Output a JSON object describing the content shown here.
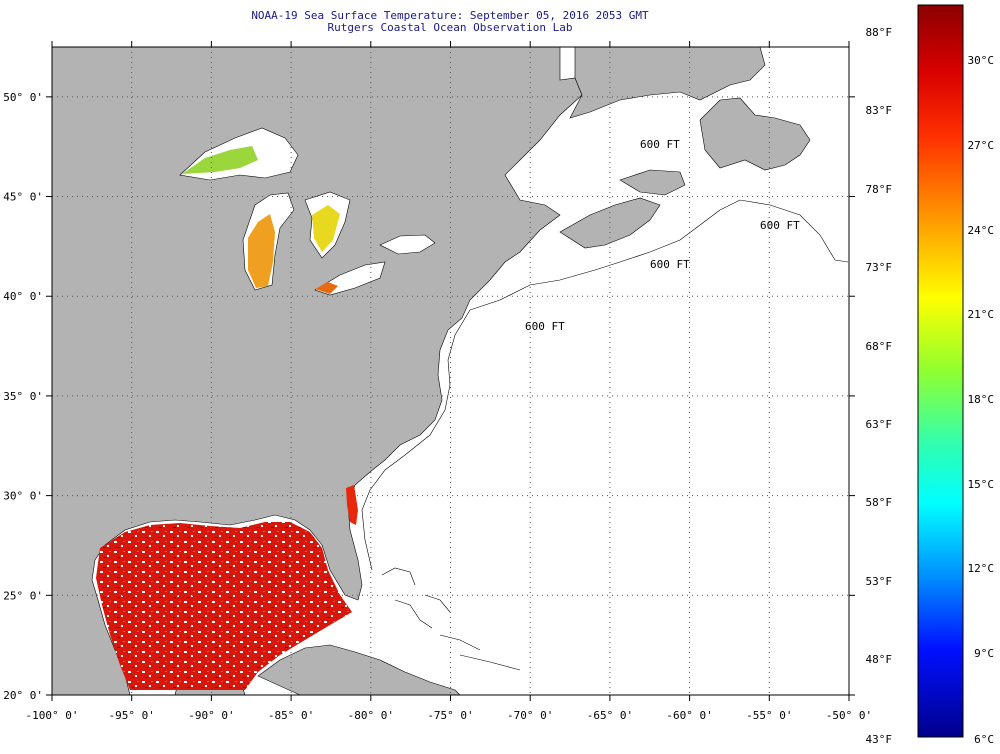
{
  "title": {
    "line1": "NOAA-19 Sea Surface Temperature:  September 05, 2016 2053 GMT",
    "line2": "Rutgers Coastal Ocean Observation Lab"
  },
  "map": {
    "lon_range": [
      -100,
      -50
    ],
    "lat_range": [
      20,
      52.5
    ],
    "lon_ticks": [
      {
        "v": -100,
        "label": "-100° 0'"
      },
      {
        "v": -95,
        "label": "-95° 0'"
      },
      {
        "v": -90,
        "label": "-90° 0'"
      },
      {
        "v": -85,
        "label": "-85° 0'"
      },
      {
        "v": -80,
        "label": "-80° 0'"
      },
      {
        "v": -75,
        "label": "-75° 0'"
      },
      {
        "v": -70,
        "label": "-70° 0'"
      },
      {
        "v": -65,
        "label": "-65° 0'"
      },
      {
        "v": -60,
        "label": "-60° 0'"
      },
      {
        "v": -55,
        "label": "-55° 0'"
      },
      {
        "v": -50,
        "label": "-50° 0'"
      }
    ],
    "lat_ticks": [
      {
        "v": 20,
        "label": "20° 0'"
      },
      {
        "v": 25,
        "label": "25° 0'"
      },
      {
        "v": 30,
        "label": "30° 0'"
      },
      {
        "v": 35,
        "label": "35° 0'"
      },
      {
        "v": 40,
        "label": "40° 0'"
      },
      {
        "v": 45,
        "label": "45° 0'"
      },
      {
        "v": 50,
        "label": "50° 0'"
      }
    ],
    "grid": "dotted",
    "contour_label": "600 FT",
    "colors": {
      "land": "#b3b3b3",
      "ocean_no_data": "#ffffff",
      "gulf": "#d41a0a"
    }
  },
  "colorbar": {
    "f_labels": [
      "88°F",
      "83°F",
      "78°F",
      "73°F",
      "68°F",
      "63°F",
      "58°F",
      "53°F",
      "48°F",
      "43°F"
    ],
    "c_labels": [
      "30°C",
      "27°C",
      "24°C",
      "21°C",
      "18°C",
      "15°C",
      "12°C",
      "9°C",
      "6°C"
    ],
    "range_c": [
      6,
      31.5
    ],
    "colors": [
      "#8b0000",
      "#e00000",
      "#ff4000",
      "#ffa000",
      "#ffff00",
      "#80ff40",
      "#00ffff",
      "#0080ff",
      "#0000ff",
      "#00008b"
    ]
  }
}
